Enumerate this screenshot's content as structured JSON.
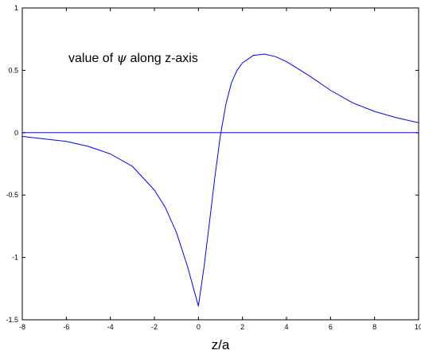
{
  "chart_data": {
    "type": "line",
    "title": "",
    "xlabel": "z/a",
    "ylabel": "",
    "xlim": [
      -8,
      10
    ],
    "ylim": [
      -1.5,
      1
    ],
    "x_ticks": [
      "-8",
      "-6",
      "-4",
      "-2",
      "0",
      "2",
      "4",
      "6",
      "8",
      "10"
    ],
    "y_ticks": [
      "1",
      "0.5",
      "0",
      "-0.5",
      "-1",
      "-1.5"
    ],
    "grid": false,
    "legend": "none",
    "annotation": {
      "prefix": "value of ",
      "symbol": "ψ",
      "suffix": " along z-axis"
    },
    "line_color": "#0000ff",
    "series": [
      {
        "x": [
          -8,
          -7,
          -6,
          -5,
          -4,
          -3,
          -2,
          -1.5,
          -1,
          -0.5,
          -0.25,
          0,
          0.25,
          0.5,
          0.75,
          1,
          1.25,
          1.5,
          1.75,
          2,
          2.5,
          3,
          3.5,
          4,
          5,
          6,
          7,
          8,
          9,
          10
        ],
        "y": [
          -0.03,
          -0.05,
          -0.07,
          -0.11,
          -0.17,
          -0.27,
          -0.46,
          -0.6,
          -0.8,
          -1.07,
          -1.23,
          -1.39,
          -1.08,
          -0.72,
          -0.35,
          -0.02,
          0.23,
          0.4,
          0.5,
          0.56,
          0.62,
          0.63,
          0.61,
          0.57,
          0.46,
          0.34,
          0.24,
          0.17,
          0.12,
          0.08
        ]
      },
      {
        "x": [
          -8,
          10
        ],
        "y": [
          0,
          0
        ]
      }
    ]
  }
}
